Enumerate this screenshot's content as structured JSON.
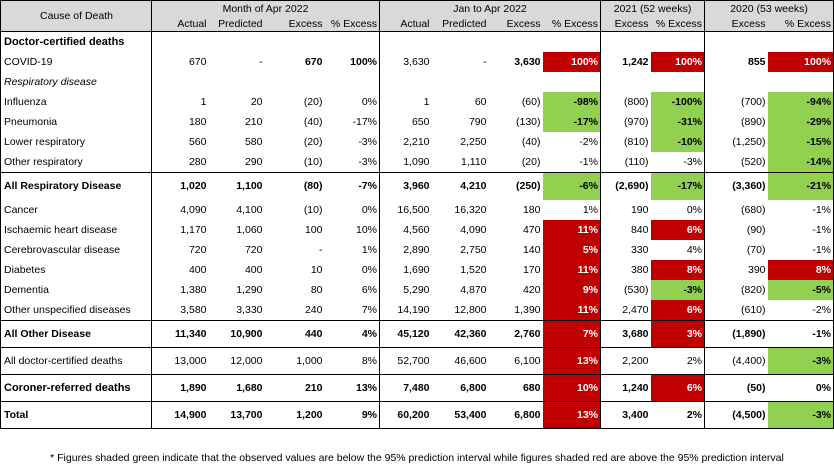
{
  "header": {
    "cause_label": "Cause of Death",
    "groups": [
      "Month of Apr 2022",
      "Jan to Apr 2022",
      "2021 (52 weeks)",
      "2020 (53 weeks)"
    ],
    "subheaders": [
      "Actual",
      "Predicted",
      "Excess",
      "% Excess",
      "Actual",
      "Predicted",
      "Excess",
      "% Excess",
      "Excess",
      "% Excess",
      "Excess",
      "% Excess"
    ]
  },
  "colors": {
    "green": "#92d050",
    "red": "#c00000",
    "header": "#d9d9d9"
  },
  "rows": [
    {
      "cause": "Doctor-certified deaths",
      "style": "section",
      "cells": [
        "",
        "",
        "",
        "",
        "",
        "",
        "",
        "",
        "",
        "",
        "",
        ""
      ],
      "shade": [
        "",
        "",
        "",
        "",
        "",
        "",
        "",
        "",
        "",
        "",
        "",
        ""
      ]
    },
    {
      "cause": "COVID-19",
      "style": "normal",
      "cells": [
        "670",
        "-",
        "670",
        "100%",
        "3,630",
        "-",
        "3,630",
        "100%",
        "1,242",
        "100%",
        "855",
        "100%"
      ],
      "shade": [
        "",
        "",
        "",
        "",
        "",
        "",
        "",
        "red",
        "",
        "red",
        "",
        "red"
      ],
      "boldcols": [
        2,
        3,
        6,
        8,
        10
      ]
    },
    {
      "cause": "Respiratory disease",
      "style": "italic",
      "cells": [
        "",
        "",
        "",
        "",
        "",
        "",
        "",
        "",
        "",
        "",
        "",
        ""
      ],
      "shade": [
        "",
        "",
        "",
        "",
        "",
        "",
        "",
        "",
        "",
        "",
        "",
        ""
      ]
    },
    {
      "cause": "Influenza",
      "style": "normal",
      "cells": [
        "1",
        "20",
        "(20)",
        "0%",
        "1",
        "60",
        "(60)",
        "-98%",
        "(800)",
        "-100%",
        "(700)",
        "-94%"
      ],
      "shade": [
        "",
        "",
        "",
        "",
        "",
        "",
        "",
        "green",
        "",
        "green",
        "",
        "green"
      ]
    },
    {
      "cause": "Pneumonia",
      "style": "normal",
      "cells": [
        "180",
        "210",
        "(40)",
        "-17%",
        "650",
        "790",
        "(130)",
        "-17%",
        "(970)",
        "-31%",
        "(890)",
        "-29%"
      ],
      "shade": [
        "",
        "",
        "",
        "",
        "",
        "",
        "",
        "green",
        "",
        "green",
        "",
        "green"
      ]
    },
    {
      "cause": "Lower respiratory",
      "style": "normal",
      "cells": [
        "560",
        "580",
        "(20)",
        "-3%",
        "2,210",
        "2,250",
        "(40)",
        "-2%",
        "(810)",
        "-10%",
        "(1,250)",
        "-15%"
      ],
      "shade": [
        "",
        "",
        "",
        "",
        "",
        "",
        "",
        "",
        "",
        "green",
        "",
        "green"
      ]
    },
    {
      "cause": "Other respiratory",
      "style": "normal",
      "cells": [
        "280",
        "290",
        "(10)",
        "-3%",
        "1,090",
        "1,110",
        "(20)",
        "-1%",
        "(110)",
        "-3%",
        "(520)",
        "-14%"
      ],
      "shade": [
        "",
        "",
        "",
        "",
        "",
        "",
        "",
        "",
        "",
        "",
        "",
        "green"
      ]
    },
    {
      "cause": "All Respiratory Disease",
      "style": "total",
      "cells": [
        "1,020",
        "1,100",
        "(80)",
        "-7%",
        "3,960",
        "4,210",
        "(250)",
        "-6%",
        "(2,690)",
        "-17%",
        "(3,360)",
        "-21%"
      ],
      "shade": [
        "",
        "",
        "",
        "",
        "",
        "",
        "",
        "green",
        "",
        "green",
        "",
        "green"
      ]
    },
    {
      "cause": "Cancer",
      "style": "normal",
      "cells": [
        "4,090",
        "4,100",
        "(10)",
        "0%",
        "16,500",
        "16,320",
        "180",
        "1%",
        "190",
        "0%",
        "(680)",
        "-1%"
      ],
      "shade": [
        "",
        "",
        "",
        "",
        "",
        "",
        "",
        "",
        "",
        "",
        "",
        ""
      ]
    },
    {
      "cause": "Ischaemic heart disease",
      "style": "normal",
      "cells": [
        "1,170",
        "1,060",
        "100",
        "10%",
        "4,560",
        "4,090",
        "470",
        "11%",
        "840",
        "6%",
        "(90)",
        "-1%"
      ],
      "shade": [
        "",
        "",
        "",
        "",
        "",
        "",
        "",
        "red",
        "",
        "red",
        "",
        ""
      ]
    },
    {
      "cause": "Cerebrovascular disease",
      "style": "normal",
      "cells": [
        "720",
        "720",
        "-",
        "1%",
        "2,890",
        "2,750",
        "140",
        "5%",
        "330",
        "4%",
        "(70)",
        "-1%"
      ],
      "shade": [
        "",
        "",
        "",
        "",
        "",
        "",
        "",
        "red",
        "",
        "",
        "",
        ""
      ]
    },
    {
      "cause": "Diabetes",
      "style": "normal",
      "cells": [
        "400",
        "400",
        "10",
        "0%",
        "1,690",
        "1,520",
        "170",
        "11%",
        "380",
        "8%",
        "390",
        "8%"
      ],
      "shade": [
        "",
        "",
        "",
        "",
        "",
        "",
        "",
        "red",
        "",
        "red",
        "",
        "red"
      ]
    },
    {
      "cause": "Dementia",
      "style": "normal",
      "cells": [
        "1,380",
        "1,290",
        "80",
        "6%",
        "5,290",
        "4,870",
        "420",
        "9%",
        "(530)",
        "-3%",
        "(820)",
        "-5%"
      ],
      "shade": [
        "",
        "",
        "",
        "",
        "",
        "",
        "",
        "red",
        "",
        "green",
        "",
        "green"
      ]
    },
    {
      "cause": "Other unspecified diseases",
      "style": "normal",
      "cells": [
        "3,580",
        "3,330",
        "240",
        "7%",
        "14,190",
        "12,800",
        "1,390",
        "11%",
        "2,470",
        "6%",
        "(610)",
        "-2%"
      ],
      "shade": [
        "",
        "",
        "",
        "",
        "",
        "",
        "",
        "red",
        "",
        "red",
        "",
        ""
      ]
    },
    {
      "cause": "All Other Disease",
      "style": "total",
      "cells": [
        "11,340",
        "10,900",
        "440",
        "4%",
        "45,120",
        "42,360",
        "2,760",
        "7%",
        "3,680",
        "3%",
        "(1,890)",
        "-1%"
      ],
      "shade": [
        "",
        "",
        "",
        "",
        "",
        "",
        "",
        "red",
        "",
        "red",
        "",
        ""
      ]
    },
    {
      "cause": "All doctor-certified deaths",
      "style": "plain",
      "cells": [
        "13,000",
        "12,000",
        "1,000",
        "8%",
        "52,700",
        "46,600",
        "6,100",
        "13%",
        "2,200",
        "2%",
        "(4,400)",
        "-3%"
      ],
      "shade": [
        "",
        "",
        "",
        "",
        "",
        "",
        "",
        "red",
        "",
        "",
        "",
        "green"
      ]
    },
    {
      "cause": "Coroner-referred deaths",
      "style": "coroner",
      "cells": [
        "1,890",
        "1,680",
        "210",
        "13%",
        "7,480",
        "6,800",
        "680",
        "10%",
        "1,240",
        "6%",
        "(50)",
        "0%"
      ],
      "shade": [
        "",
        "",
        "",
        "",
        "",
        "",
        "",
        "red",
        "",
        "red",
        "",
        ""
      ]
    },
    {
      "cause": "Total",
      "style": "grand",
      "cells": [
        "14,900",
        "13,700",
        "1,200",
        "9%",
        "60,200",
        "53,400",
        "6,800",
        "13%",
        "3,400",
        "2%",
        "(4,500)",
        "-3%"
      ],
      "shade": [
        "",
        "",
        "",
        "",
        "",
        "",
        "",
        "red",
        "",
        "",
        "",
        "green"
      ]
    }
  ],
  "footnote": "* Figures shaded green indicate that the observed values are below the 95% prediction interval while figures shaded red are above the 95% prediction interval"
}
